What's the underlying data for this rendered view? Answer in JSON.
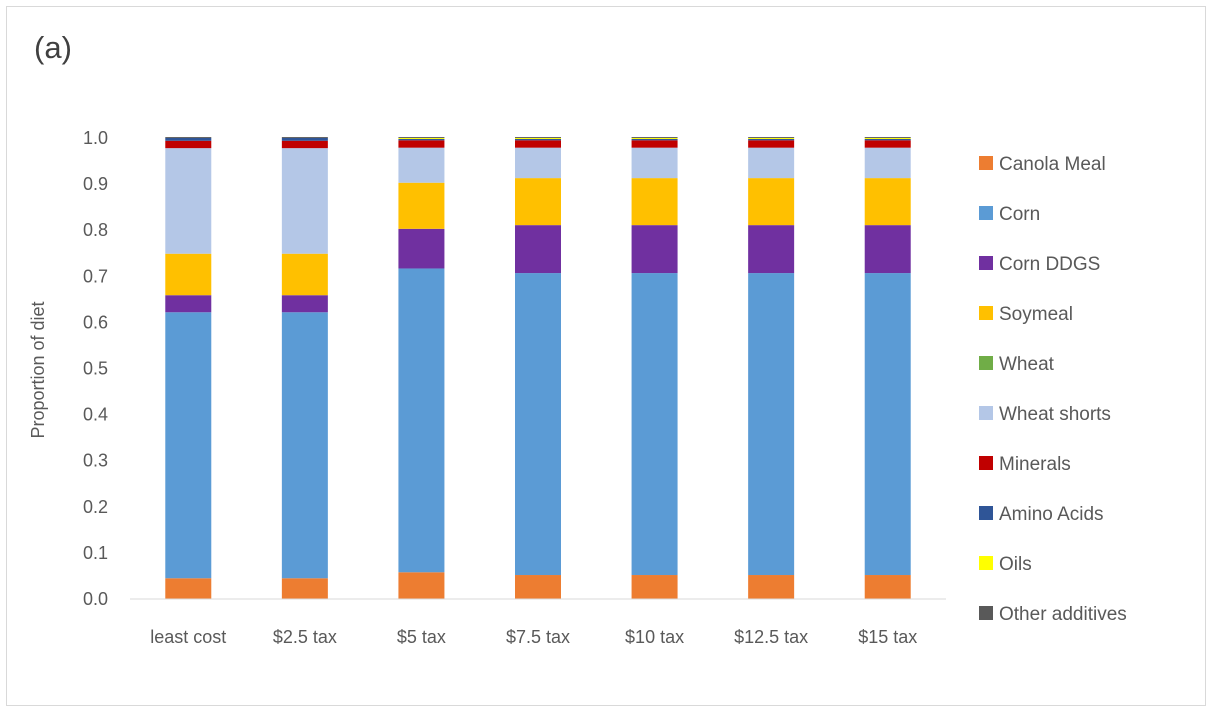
{
  "chart_data": {
    "type": "bar",
    "stacked": true,
    "panel_label": "(a)",
    "ylabel": "Proportion of diet",
    "xlabel": "",
    "ylim": [
      0,
      1.0
    ],
    "yticks": [
      "0.0",
      "0.1",
      "0.2",
      "0.3",
      "0.4",
      "0.5",
      "0.6",
      "0.7",
      "0.8",
      "0.9",
      "1.0"
    ],
    "grid": false,
    "legend_position": "right",
    "categories": [
      "least cost",
      "$2.5 tax",
      "$5 tax",
      "$7.5 tax",
      "$10 tax",
      "$12.5 tax",
      "$15 tax"
    ],
    "series": [
      {
        "name": "Canola Meal",
        "color": "#ED7D31",
        "values": [
          0.045,
          0.045,
          0.058,
          0.052,
          0.052,
          0.052,
          0.052
        ]
      },
      {
        "name": "Corn",
        "color": "#5B9BD5",
        "values": [
          0.577,
          0.577,
          0.659,
          0.655,
          0.655,
          0.655,
          0.655
        ]
      },
      {
        "name": "Corn DDGS",
        "color": "#7030A0",
        "values": [
          0.037,
          0.037,
          0.086,
          0.104,
          0.104,
          0.104,
          0.104
        ]
      },
      {
        "name": "Soymeal",
        "color": "#FFC000",
        "values": [
          0.09,
          0.09,
          0.1,
          0.102,
          0.102,
          0.102,
          0.102
        ]
      },
      {
        "name": "Wheat",
        "color": "#70AD47",
        "values": [
          0.0,
          0.0,
          0.0,
          0.0,
          0.0,
          0.0,
          0.0
        ]
      },
      {
        "name": "Wheat shorts",
        "color": "#B4C7E7",
        "values": [
          0.229,
          0.229,
          0.076,
          0.066,
          0.066,
          0.066,
          0.066
        ]
      },
      {
        "name": "Minerals",
        "color": "#C00000",
        "values": [
          0.016,
          0.016,
          0.016,
          0.016,
          0.016,
          0.016,
          0.016
        ]
      },
      {
        "name": "Amino Acids",
        "color": "#2F5597",
        "values": [
          0.006,
          0.006,
          0.003,
          0.003,
          0.003,
          0.003,
          0.003
        ]
      },
      {
        "name": "Oils",
        "color": "#FFFF00",
        "values": [
          0.0,
          0.0,
          0.002,
          0.002,
          0.002,
          0.002,
          0.002
        ]
      },
      {
        "name": "Other additives",
        "color": "#595959",
        "values": [
          0.002,
          0.002,
          0.002,
          0.002,
          0.002,
          0.002,
          0.002
        ]
      }
    ]
  }
}
